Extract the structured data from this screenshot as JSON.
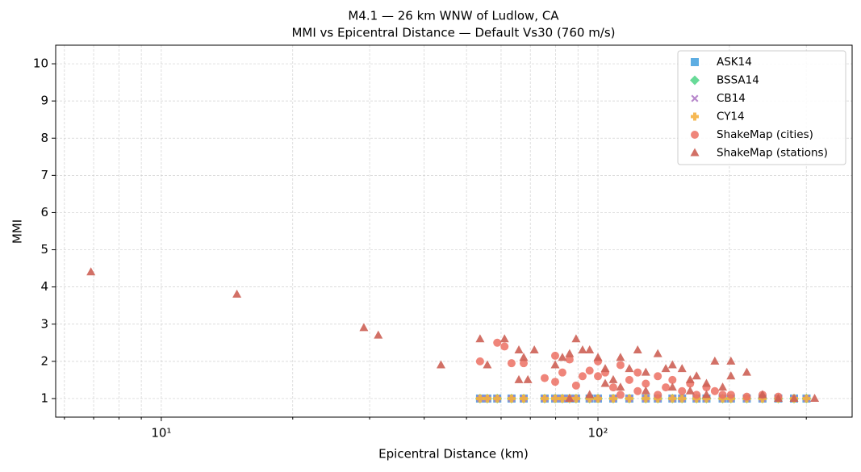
{
  "chart_data": {
    "type": "scatter",
    "title": "M4.1 — 26 km WNW of Ludlow, CA",
    "subtitle": "MMI vs Epicentral Distance — Default Vs30 (760 m/s)",
    "x_label": "Epicentral Distance (km)",
    "y_label": "MMI",
    "xscale": "log",
    "xlim": [
      5.73,
      382
    ],
    "ylim": [
      0.5,
      10.5
    ],
    "xticks": [
      {
        "value": 10,
        "label": "10¹"
      },
      {
        "value": 100,
        "label": "10²"
      }
    ],
    "xminorticks": [
      6,
      7,
      8,
      9,
      20,
      30,
      40,
      50,
      60,
      70,
      80,
      90,
      200,
      300
    ],
    "yticks": [
      1,
      2,
      3,
      4,
      5,
      6,
      7,
      8,
      9,
      10
    ],
    "grid": true,
    "legend": "upper right",
    "series": [
      {
        "name": "ASK14",
        "color": "#5DADE2",
        "marker": "square",
        "x": [
          53.7,
          55.8,
          58.8,
          63.4,
          67.6,
          75.5,
          79.8,
          82.9,
          86.1,
          89.1,
          95.7,
          100,
          108.4,
          118,
          128.7,
          137.1,
          148.1,
          155.8,
          168.2,
          177.2,
          193,
          201.6,
          219.2,
          238.1,
          258.8,
          281.2,
          300.3
        ],
        "values": [
          1,
          1,
          1,
          1,
          1,
          1,
          1,
          1,
          1,
          1,
          1,
          1,
          1,
          1,
          1,
          1,
          1,
          1,
          1,
          1,
          1,
          1,
          1,
          1,
          1,
          1,
          1
        ]
      },
      {
        "name": "BSSA14",
        "color": "#58D68D",
        "marker": "diamond",
        "x": [
          53.7,
          55.8,
          58.8,
          63.4,
          67.6,
          75.5,
          79.8,
          82.9,
          86.1,
          89.1,
          95.7,
          100,
          108.4,
          118,
          128.7,
          137.1,
          148.1,
          155.8,
          168.2,
          177.2,
          193,
          201.6,
          219.2,
          238.1,
          258.8,
          281.2,
          300.3
        ],
        "values": [
          1,
          1,
          1,
          1,
          1,
          1,
          1,
          1,
          1,
          1,
          1,
          1,
          1,
          1,
          1,
          1,
          1,
          1,
          1,
          1,
          1,
          1,
          1,
          1,
          1,
          1,
          1
        ]
      },
      {
        "name": "CB14",
        "color": "#AF7AC5",
        "marker": "x",
        "x": [
          53.7,
          55.8,
          58.8,
          63.4,
          67.6,
          75.5,
          79.8,
          82.9,
          86.1,
          89.1,
          95.7,
          100,
          108.4,
          118,
          128.7,
          137.1,
          148.1,
          155.8,
          168.2,
          177.2,
          193,
          201.6,
          219.2,
          238.1,
          258.8,
          281.2,
          300.3
        ],
        "values": [
          1,
          1,
          1,
          1,
          1,
          1,
          1,
          1,
          1,
          1,
          1,
          1,
          1,
          1,
          1,
          1,
          1,
          1,
          1,
          1,
          1,
          1,
          1,
          1,
          1,
          1,
          1
        ]
      },
      {
        "name": "CY14",
        "color": "#F5B041",
        "marker": "plus",
        "x": [
          53.7,
          55.8,
          58.8,
          63.4,
          67.6,
          75.5,
          79.8,
          82.9,
          86.1,
          89.1,
          95.7,
          100,
          108.4,
          118,
          128.7,
          137.1,
          148.1,
          155.8,
          168.2,
          177.2,
          193,
          201.6,
          219.2,
          238.1,
          258.8,
          281.2,
          300.3
        ],
        "values": [
          1,
          1,
          1,
          1,
          1,
          1,
          1,
          1,
          1,
          1,
          1,
          1,
          1,
          1,
          1,
          1,
          1,
          1,
          1,
          1,
          1,
          1,
          1,
          1,
          1,
          1,
          1
        ]
      },
      {
        "name": "ShakeMap (cities)",
        "color": "#EC7063",
        "marker": "circle",
        "x": [
          53.7,
          58.8,
          61.1,
          63.4,
          67.6,
          75.5,
          79.8,
          79.8,
          82.9,
          86.1,
          89.1,
          92.2,
          95.7,
          100,
          100,
          103.9,
          108.4,
          112.6,
          118,
          123.3,
          128.7,
          137.1,
          143,
          148.1,
          155.8,
          162.6,
          168.2,
          177.2,
          185.2,
          193,
          201.6,
          219.2,
          238.1,
          258.8,
          123.3,
          137.1,
          112.6
        ],
        "values": [
          2.0,
          2.5,
          2.4,
          1.95,
          1.95,
          1.55,
          2.15,
          1.45,
          1.7,
          2.05,
          1.35,
          1.6,
          1.75,
          2.0,
          1.6,
          1.7,
          1.3,
          1.9,
          1.5,
          1.7,
          1.4,
          1.6,
          1.3,
          1.5,
          1.2,
          1.4,
          1.1,
          1.3,
          1.2,
          1.1,
          1.1,
          1.05,
          1.1,
          1.05,
          1.2,
          1.1,
          1.1
        ]
      },
      {
        "name": "ShakeMap (stations)",
        "color": "#CD6155",
        "marker": "triangle",
        "x": [
          6.9,
          14.9,
          29.1,
          31.4,
          43.7,
          53.7,
          55.8,
          61.1,
          65.9,
          67.6,
          65.9,
          69.1,
          71.5,
          79.8,
          82.9,
          86.1,
          89.1,
          92.2,
          95.7,
          100,
          103.9,
          108.4,
          112.6,
          118,
          123.3,
          128.7,
          137.1,
          143,
          148.1,
          155.8,
          162.6,
          168.2,
          177.2,
          185.2,
          193,
          201.6,
          201.6,
          219.2,
          238.1,
          258.8,
          281.2,
          313.5,
          86.1,
          95.7,
          112.6,
          128.7,
          148.1,
          177.2,
          103.9,
          162.6
        ],
        "values": [
          4.4,
          3.8,
          2.9,
          2.7,
          1.9,
          2.6,
          1.9,
          2.6,
          2.3,
          2.1,
          1.5,
          1.5,
          2.3,
          1.9,
          2.1,
          2.2,
          2.6,
          2.3,
          2.3,
          2.1,
          1.8,
          1.5,
          2.1,
          1.8,
          2.3,
          1.7,
          2.2,
          1.8,
          1.9,
          1.8,
          1.5,
          1.6,
          1.4,
          2.0,
          1.3,
          2.0,
          1.6,
          1.7,
          1.1,
          1.0,
          1.0,
          1.0,
          1.0,
          1.1,
          1.3,
          1.2,
          1.3,
          1.1,
          1.4,
          1.2
        ]
      }
    ]
  }
}
